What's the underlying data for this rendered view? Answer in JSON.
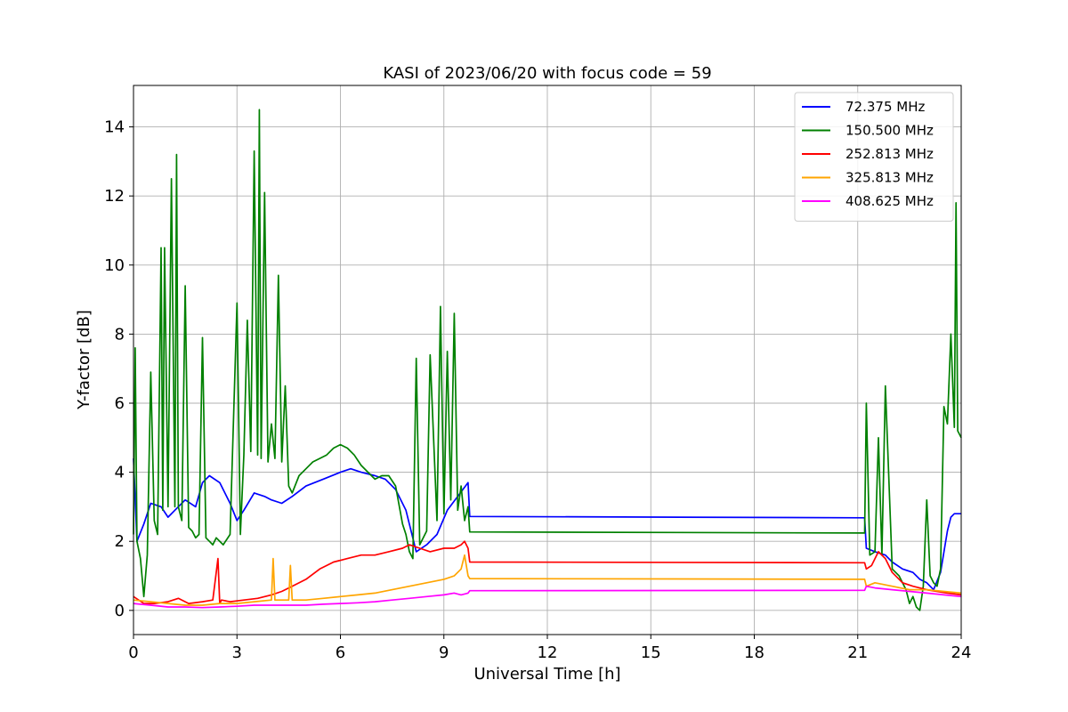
{
  "chart_data": {
    "type": "line",
    "title": "KASI of 2023/06/20 with focus code = 59",
    "xlabel": "Universal Time [h]",
    "ylabel": "Y-factor [dB]",
    "xlim": [
      0,
      24
    ],
    "ylim": [
      -0.7,
      15.2
    ],
    "xticks": [
      0,
      3,
      6,
      9,
      12,
      15,
      18,
      21,
      24
    ],
    "yticks": [
      0,
      2,
      4,
      6,
      8,
      10,
      12,
      14
    ],
    "grid": true,
    "legend_position": "top-right",
    "series": [
      {
        "name": "72.375 MHz",
        "color": "#0000ff",
        "x": [
          0,
          0.1,
          0.3,
          0.5,
          0.8,
          1.0,
          1.2,
          1.5,
          1.8,
          2.0,
          2.2,
          2.5,
          2.8,
          3.0,
          3.2,
          3.5,
          3.8,
          4.0,
          4.3,
          4.6,
          5.0,
          5.5,
          6.0,
          6.3,
          6.6,
          7.0,
          7.3,
          7.6,
          7.9,
          8.2,
          8.5,
          8.8,
          9.1,
          9.4,
          9.7,
          9.75,
          21.2,
          21.25,
          21.5,
          21.8,
          22.0,
          22.3,
          22.6,
          22.8,
          23.0,
          23.2,
          23.4,
          23.6,
          23.7,
          23.8,
          24.0
        ],
        "y": [
          4.4,
          2.0,
          2.5,
          3.1,
          3.0,
          2.7,
          2.9,
          3.2,
          3.0,
          3.7,
          3.9,
          3.7,
          3.1,
          2.6,
          2.9,
          3.4,
          3.3,
          3.2,
          3.1,
          3.3,
          3.6,
          3.8,
          4.0,
          4.1,
          4.0,
          3.9,
          3.8,
          3.5,
          2.9,
          1.7,
          1.9,
          2.2,
          2.9,
          3.3,
          3.7,
          2.72,
          2.68,
          1.8,
          1.7,
          1.6,
          1.4,
          1.2,
          1.1,
          0.9,
          0.8,
          0.6,
          1.1,
          2.3,
          2.7,
          2.8,
          2.8
        ]
      },
      {
        "name": "150.500 MHz",
        "color": "#008000",
        "x": [
          0,
          0.05,
          0.1,
          0.2,
          0.3,
          0.4,
          0.5,
          0.6,
          0.7,
          0.8,
          0.85,
          0.9,
          1.0,
          1.1,
          1.2,
          1.25,
          1.3,
          1.4,
          1.5,
          1.6,
          1.7,
          1.8,
          1.9,
          2.0,
          2.1,
          2.2,
          2.3,
          2.4,
          2.6,
          2.8,
          3.0,
          3.1,
          3.2,
          3.3,
          3.4,
          3.5,
          3.6,
          3.65,
          3.7,
          3.8,
          3.9,
          4.0,
          4.1,
          4.2,
          4.3,
          4.4,
          4.5,
          4.6,
          4.8,
          5.0,
          5.2,
          5.4,
          5.6,
          5.8,
          6.0,
          6.2,
          6.4,
          6.6,
          6.8,
          7.0,
          7.2,
          7.4,
          7.6,
          7.8,
          7.9,
          8.0,
          8.1,
          8.2,
          8.3,
          8.5,
          8.6,
          8.8,
          8.9,
          9.0,
          9.1,
          9.2,
          9.3,
          9.4,
          9.5,
          9.6,
          9.7,
          9.75,
          21.2,
          21.25,
          21.35,
          21.5,
          21.6,
          21.7,
          21.8,
          22.0,
          22.2,
          22.4,
          22.5,
          22.6,
          22.7,
          22.8,
          22.9,
          23.0,
          23.1,
          23.2,
          23.3,
          23.4,
          23.5,
          23.6,
          23.7,
          23.8,
          23.85,
          23.9,
          24.0
        ],
        "y": [
          2.2,
          7.6,
          2.0,
          1.5,
          0.4,
          1.6,
          6.9,
          2.6,
          2.2,
          10.5,
          2.9,
          10.5,
          3.0,
          12.5,
          3.0,
          13.2,
          3.0,
          2.6,
          9.4,
          2.4,
          2.3,
          2.1,
          2.2,
          7.9,
          2.1,
          2.0,
          1.9,
          2.1,
          1.9,
          2.2,
          8.9,
          2.2,
          4.5,
          8.4,
          4.6,
          13.3,
          4.5,
          14.5,
          4.4,
          12.1,
          4.3,
          5.4,
          4.4,
          9.7,
          4.3,
          6.5,
          3.6,
          3.4,
          3.9,
          4.1,
          4.3,
          4.4,
          4.5,
          4.7,
          4.8,
          4.7,
          4.5,
          4.2,
          4.0,
          3.8,
          3.9,
          3.9,
          3.6,
          2.5,
          2.2,
          1.7,
          1.5,
          7.3,
          1.9,
          2.3,
          7.4,
          2.6,
          8.8,
          2.8,
          7.5,
          3.2,
          8.6,
          2.9,
          3.6,
          2.6,
          3.0,
          2.27,
          2.24,
          6.0,
          1.6,
          1.7,
          5.0,
          1.6,
          6.5,
          1.2,
          1.0,
          0.6,
          0.2,
          0.4,
          0.1,
          0.0,
          0.7,
          3.2,
          1.0,
          0.8,
          0.7,
          1.2,
          5.9,
          5.4,
          8.0,
          5.3,
          11.8,
          5.2,
          5.0
        ]
      },
      {
        "name": "252.813 MHz",
        "color": "#ff0000",
        "x": [
          0,
          0.3,
          0.6,
          1.0,
          1.3,
          1.6,
          2.0,
          2.3,
          2.45,
          2.5,
          2.55,
          2.8,
          3.2,
          3.6,
          4.0,
          4.3,
          4.6,
          5.0,
          5.4,
          5.8,
          6.2,
          6.6,
          7.0,
          7.4,
          7.8,
          8.0,
          8.3,
          8.6,
          9.0,
          9.3,
          9.5,
          9.6,
          9.7,
          9.75,
          21.2,
          21.25,
          21.4,
          21.6,
          21.8,
          22.0,
          22.3,
          22.6,
          23.0,
          23.3,
          23.6,
          24.0
        ],
        "y": [
          0.4,
          0.2,
          0.2,
          0.25,
          0.35,
          0.2,
          0.25,
          0.3,
          1.5,
          0.2,
          0.3,
          0.25,
          0.3,
          0.35,
          0.45,
          0.55,
          0.7,
          0.9,
          1.2,
          1.4,
          1.5,
          1.6,
          1.6,
          1.7,
          1.8,
          1.9,
          1.8,
          1.7,
          1.8,
          1.8,
          1.9,
          2.0,
          1.8,
          1.4,
          1.38,
          1.2,
          1.3,
          1.7,
          1.5,
          1.1,
          0.8,
          0.7,
          0.6,
          0.55,
          0.5,
          0.45
        ]
      },
      {
        "name": "325.813 MHz",
        "color": "#ffa500",
        "x": [
          0,
          0.5,
          1.0,
          1.5,
          2.0,
          2.5,
          3.0,
          3.5,
          4.0,
          4.05,
          4.1,
          4.5,
          4.55,
          4.6,
          5.0,
          5.5,
          6.0,
          6.5,
          7.0,
          7.5,
          8.0,
          8.5,
          9.0,
          9.3,
          9.5,
          9.6,
          9.7,
          9.75,
          21.2,
          21.25,
          21.5,
          22.0,
          22.5,
          23.0,
          23.5,
          24.0
        ],
        "y": [
          0.3,
          0.25,
          0.2,
          0.15,
          0.15,
          0.2,
          0.2,
          0.25,
          0.3,
          1.5,
          0.3,
          0.3,
          1.3,
          0.3,
          0.3,
          0.35,
          0.4,
          0.45,
          0.5,
          0.6,
          0.7,
          0.8,
          0.9,
          1.0,
          1.2,
          1.6,
          1.0,
          0.92,
          0.9,
          0.7,
          0.8,
          0.7,
          0.6,
          0.6,
          0.55,
          0.5
        ]
      },
      {
        "name": "408.625 MHz",
        "color": "#ff00ff",
        "x": [
          0,
          0.5,
          1.0,
          1.5,
          2.0,
          2.5,
          3.0,
          3.5,
          4.0,
          4.5,
          5.0,
          5.5,
          6.0,
          6.5,
          7.0,
          7.5,
          8.0,
          8.5,
          9.0,
          9.3,
          9.5,
          9.7,
          9.75,
          21.2,
          21.25,
          21.5,
          22.0,
          22.5,
          23.0,
          23.5,
          24.0
        ],
        "y": [
          0.2,
          0.15,
          0.1,
          0.1,
          0.08,
          0.1,
          0.12,
          0.15,
          0.15,
          0.15,
          0.15,
          0.18,
          0.2,
          0.22,
          0.25,
          0.3,
          0.35,
          0.4,
          0.45,
          0.5,
          0.45,
          0.5,
          0.57,
          0.58,
          0.7,
          0.65,
          0.6,
          0.55,
          0.5,
          0.45,
          0.4
        ]
      }
    ]
  }
}
